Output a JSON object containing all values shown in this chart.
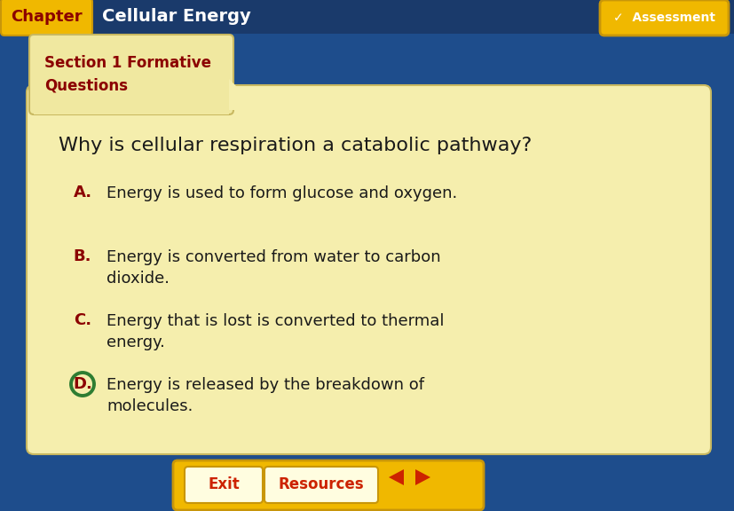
{
  "background_color": "#1e4d8c",
  "chapter_tab_color": "#f0b800",
  "chapter_tab_text": "Chapter",
  "chapter_tab_text_color": "#8b0000",
  "header_text": "Cellular Energy",
  "header_text_color": "#ffffff",
  "header_bg_color": "#1a3a6b",
  "section_tab_color": "#f0e8a0",
  "section_tab_text": "Section 1 Formative\nQuestions",
  "section_tab_text_color": "#8b0000",
  "card_bg_color": "#f5eead",
  "card_border_color": "#c8b860",
  "question_text": "Why is cellular respiration a catabolic pathway?",
  "question_color": "#1a1a1a",
  "options": [
    {
      "label": "A.",
      "text": "Energy is used to form glucose and oxygen.",
      "wrap": false
    },
    {
      "label": "B.",
      "text": "Energy is converted from water to carbon\ndioxide.",
      "wrap": true
    },
    {
      "label": "C.",
      "text": "Energy that is lost is converted to thermal\nenergy.",
      "wrap": true
    },
    {
      "label": "D.",
      "text": "Energy is released by the breakdown of\nmolecules.",
      "wrap": true
    }
  ],
  "option_label_color": "#8b0000",
  "option_text_color": "#1a1a1a",
  "correct_option_idx": 3,
  "correct_circle_color": "#2e7d32",
  "assessment_btn_color": "#f0b800",
  "assessment_text": "Assessment",
  "assessment_check": "✓",
  "exit_btn_color": "#f0b800",
  "exit_text": "Exit",
  "resources_btn_color": "#f0b800",
  "resources_text": "Resources",
  "nav_arrow_color": "#cc2200",
  "btn_text_color": "#cc2200",
  "btn_inner_color": "#fffde0"
}
